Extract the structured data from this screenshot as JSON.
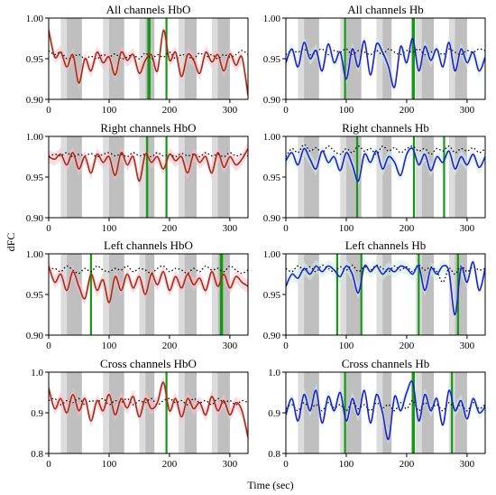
{
  "figure": {
    "ylabel": "dFC",
    "xlabel": "Time (sec)"
  },
  "chart_data": [
    {
      "type": "line",
      "title": "All channels HbO",
      "xlim": [
        0,
        330
      ],
      "ylim": [
        0.9,
        1.0
      ],
      "xticks": [
        "0",
        "100",
        "200",
        "300"
      ],
      "yticks": [
        "0.90",
        "0.95",
        "1.00"
      ],
      "color": "#aa2a10",
      "band_color": "#f7bfd0",
      "x": [
        0,
        10,
        20,
        30,
        40,
        50,
        60,
        70,
        80,
        90,
        100,
        110,
        120,
        130,
        140,
        150,
        160,
        170,
        180,
        190,
        200,
        210,
        220,
        230,
        240,
        250,
        260,
        270,
        280,
        290,
        300,
        310,
        320,
        330
      ],
      "values": [
        0.985,
        0.952,
        0.958,
        0.94,
        0.955,
        0.92,
        0.95,
        0.935,
        0.958,
        0.945,
        0.952,
        0.93,
        0.958,
        0.948,
        0.955,
        0.932,
        0.948,
        0.955,
        0.935,
        0.985,
        0.948,
        0.958,
        0.928,
        0.955,
        0.948,
        0.932,
        0.958,
        0.946,
        0.955,
        0.935,
        0.956,
        0.942,
        0.952,
        0.905
      ],
      "dotted": [
        0.96,
        0.955,
        0.958,
        0.95,
        0.952,
        0.955,
        0.95,
        0.953,
        0.95,
        0.955,
        0.952,
        0.956,
        0.95,
        0.952,
        0.955,
        0.95,
        0.957,
        0.95,
        0.955,
        0.952,
        0.958,
        0.95,
        0.955,
        0.953,
        0.95,
        0.957,
        0.952,
        0.955,
        0.95,
        0.955,
        0.952,
        0.955,
        0.96,
        0.955
      ]
    },
    {
      "type": "line",
      "title": "All channels Hb",
      "xlim": [
        0,
        330
      ],
      "ylim": [
        0.9,
        1.0
      ],
      "xticks": [
        "0",
        "100",
        "200",
        "300"
      ],
      "yticks": [
        "0.90",
        "0.95",
        "1.00"
      ],
      "color": "#1f1fcf",
      "band_color": "#ccefe8",
      "x": [
        0,
        10,
        20,
        30,
        40,
        50,
        60,
        70,
        80,
        90,
        100,
        110,
        120,
        130,
        140,
        150,
        160,
        170,
        180,
        190,
        200,
        210,
        220,
        230,
        240,
        250,
        260,
        270,
        280,
        290,
        300,
        310,
        320,
        330
      ],
      "values": [
        0.945,
        0.962,
        0.94,
        0.97,
        0.95,
        0.96,
        0.935,
        0.968,
        0.945,
        0.958,
        0.925,
        0.962,
        0.94,
        0.972,
        0.93,
        0.968,
        0.958,
        0.94,
        0.915,
        0.965,
        0.945,
        0.975,
        0.935,
        0.965,
        0.948,
        0.962,
        0.94,
        0.97,
        0.935,
        0.962,
        0.945,
        0.958,
        0.935,
        0.952
      ],
      "dotted": [
        0.955,
        0.96,
        0.958,
        0.962,
        0.955,
        0.958,
        0.962,
        0.955,
        0.96,
        0.958,
        0.962,
        0.955,
        0.96,
        0.958,
        0.955,
        0.96,
        0.955,
        0.962,
        0.958,
        0.955,
        0.96,
        0.958,
        0.962,
        0.955,
        0.958,
        0.96,
        0.955,
        0.962,
        0.958,
        0.955,
        0.96,
        0.958,
        0.962,
        0.96
      ]
    },
    {
      "type": "line",
      "title": "Right channels HbO",
      "xlim": [
        0,
        330
      ],
      "ylim": [
        0.9,
        1.0
      ],
      "xticks": [
        "0",
        "100",
        "200",
        "300"
      ],
      "yticks": [
        "0.90",
        "0.95",
        "1.00"
      ],
      "color": "#aa2a10",
      "band_color": "#f7bfd0",
      "x": [
        0,
        10,
        20,
        30,
        40,
        50,
        60,
        70,
        80,
        90,
        100,
        110,
        120,
        130,
        140,
        150,
        160,
        170,
        180,
        190,
        200,
        210,
        220,
        230,
        240,
        250,
        260,
        270,
        280,
        290,
        300,
        310,
        320,
        330
      ],
      "values": [
        0.975,
        0.972,
        0.978,
        0.965,
        0.98,
        0.96,
        0.975,
        0.955,
        0.978,
        0.968,
        0.975,
        0.952,
        0.98,
        0.965,
        0.975,
        0.945,
        0.978,
        0.968,
        0.975,
        0.96,
        0.978,
        0.97,
        0.975,
        0.955,
        0.978,
        0.968,
        0.975,
        0.955,
        0.98,
        0.962,
        0.975,
        0.965,
        0.972,
        0.985
      ],
      "dotted": [
        0.975,
        0.978,
        0.976,
        0.98,
        0.975,
        0.978,
        0.976,
        0.979,
        0.975,
        0.978,
        0.98,
        0.976,
        0.978,
        0.975,
        0.98,
        0.976,
        0.978,
        0.975,
        0.98,
        0.976,
        0.978,
        0.975,
        0.979,
        0.976,
        0.978,
        0.975,
        0.98,
        0.976,
        0.978,
        0.975,
        0.98,
        0.976,
        0.978,
        0.976
      ]
    },
    {
      "type": "line",
      "title": "Right channels Hb",
      "xlim": [
        0,
        330
      ],
      "ylim": [
        0.9,
        1.0
      ],
      "xticks": [
        "0",
        "100",
        "200",
        "300"
      ],
      "yticks": [
        "0.90",
        "0.95",
        "1.00"
      ],
      "color": "#1f1fcf",
      "band_color": "#ccefe8",
      "x": [
        0,
        10,
        20,
        30,
        40,
        50,
        60,
        70,
        80,
        90,
        100,
        110,
        120,
        130,
        140,
        150,
        160,
        170,
        180,
        190,
        200,
        210,
        220,
        230,
        240,
        250,
        260,
        270,
        280,
        290,
        300,
        310,
        320,
        330
      ],
      "values": [
        0.97,
        0.98,
        0.965,
        0.985,
        0.972,
        0.96,
        0.982,
        0.968,
        0.975,
        0.958,
        0.98,
        0.965,
        0.945,
        0.978,
        0.968,
        0.982,
        0.96,
        0.975,
        0.968,
        0.952,
        0.978,
        0.985,
        0.965,
        0.978,
        0.958,
        0.975,
        0.968,
        0.982,
        0.96,
        0.975,
        0.965,
        0.978,
        0.962,
        0.975
      ],
      "dotted": [
        0.975,
        0.985,
        0.98,
        0.99,
        0.982,
        0.986,
        0.98,
        0.988,
        0.982,
        0.978,
        0.985,
        0.98,
        0.988,
        0.982,
        0.985,
        0.978,
        0.988,
        0.982,
        0.986,
        0.98,
        0.985,
        0.988,
        0.982,
        0.985,
        0.978,
        0.985,
        0.982,
        0.988,
        0.98,
        0.985,
        0.982,
        0.986,
        0.98,
        0.985
      ]
    },
    {
      "type": "line",
      "title": "Left channels HbO",
      "xlim": [
        0,
        330
      ],
      "ylim": [
        0.9,
        1.0
      ],
      "xticks": [
        "0",
        "100",
        "200",
        "300"
      ],
      "yticks": [
        "0.90",
        "0.95",
        "1.00"
      ],
      "color": "#aa2a10",
      "band_color": "#f7bfd0",
      "x": [
        0,
        10,
        20,
        30,
        40,
        50,
        60,
        70,
        80,
        90,
        100,
        110,
        120,
        130,
        140,
        150,
        160,
        170,
        180,
        190,
        200,
        210,
        220,
        230,
        240,
        250,
        260,
        270,
        280,
        290,
        300,
        310,
        320,
        330
      ],
      "values": [
        0.985,
        0.965,
        0.975,
        0.955,
        0.978,
        0.96,
        0.945,
        0.975,
        0.955,
        0.968,
        0.94,
        0.972,
        0.955,
        0.975,
        0.958,
        0.972,
        0.95,
        0.975,
        0.962,
        0.978,
        0.955,
        0.972,
        0.958,
        0.975,
        0.962,
        0.97,
        0.955,
        0.978,
        0.96,
        0.975,
        0.958,
        0.972,
        0.965,
        0.96
      ],
      "dotted": [
        0.98,
        0.982,
        0.978,
        0.985,
        0.98,
        0.976,
        0.982,
        0.978,
        0.985,
        0.98,
        0.978,
        0.982,
        0.98,
        0.985,
        0.978,
        0.982,
        0.98,
        0.976,
        0.982,
        0.985,
        0.978,
        0.982,
        0.98,
        0.976,
        0.982,
        0.978,
        0.985,
        0.98,
        0.982,
        0.978,
        0.985,
        0.98,
        0.976,
        0.98
      ]
    },
    {
      "type": "line",
      "title": "Left channels Hb",
      "xlim": [
        0,
        330
      ],
      "ylim": [
        0.9,
        1.0
      ],
      "xticks": [
        "0",
        "100",
        "200",
        "300"
      ],
      "yticks": [
        "0.90",
        "0.95",
        "1.00"
      ],
      "color": "#1f1fcf",
      "band_color": "#ccefe8",
      "x": [
        0,
        10,
        20,
        30,
        40,
        50,
        60,
        70,
        80,
        90,
        100,
        110,
        120,
        130,
        140,
        150,
        160,
        170,
        180,
        190,
        200,
        210,
        220,
        230,
        240,
        250,
        260,
        270,
        280,
        290,
        300,
        310,
        320,
        330
      ],
      "values": [
        0.96,
        0.975,
        0.97,
        0.982,
        0.975,
        0.985,
        0.978,
        0.985,
        0.98,
        0.972,
        0.985,
        0.975,
        0.952,
        0.985,
        0.978,
        0.985,
        0.975,
        0.982,
        0.978,
        0.985,
        0.982,
        0.975,
        0.985,
        0.955,
        0.982,
        0.975,
        0.985,
        0.978,
        0.925,
        0.982,
        0.965,
        0.99,
        0.955,
        0.982
      ],
      "dotted": [
        0.982,
        0.978,
        0.985,
        0.98,
        0.984,
        0.978,
        0.986,
        0.982,
        0.978,
        0.984,
        0.98,
        0.986,
        0.978,
        0.984,
        0.98,
        0.986,
        0.982,
        0.978,
        0.985,
        0.98,
        0.984,
        0.978,
        0.986,
        0.98,
        0.984,
        0.978,
        0.965,
        0.982,
        0.975,
        0.985,
        0.978,
        0.984,
        0.98,
        0.982
      ]
    },
    {
      "type": "line",
      "title": "Cross channels HbO",
      "xlim": [
        0,
        330
      ],
      "ylim": [
        0.8,
        1.0
      ],
      "xticks": [
        "0",
        "100",
        "200",
        "300"
      ],
      "yticks": [
        "0.8",
        "0.9",
        "1.0"
      ],
      "color": "#aa2a10",
      "band_color": "#f7bfd0",
      "x": [
        0,
        10,
        20,
        30,
        40,
        50,
        60,
        70,
        80,
        90,
        100,
        110,
        120,
        130,
        140,
        150,
        160,
        170,
        180,
        190,
        200,
        210,
        220,
        230,
        240,
        250,
        260,
        270,
        280,
        290,
        300,
        310,
        320,
        330
      ],
      "values": [
        0.96,
        0.91,
        0.935,
        0.9,
        0.945,
        0.905,
        0.935,
        0.88,
        0.93,
        0.905,
        0.945,
        0.895,
        0.935,
        0.912,
        0.94,
        0.89,
        0.935,
        0.91,
        0.925,
        0.975,
        0.905,
        0.935,
        0.89,
        0.935,
        0.91,
        0.925,
        0.895,
        0.94,
        0.905,
        0.93,
        0.895,
        0.925,
        0.905,
        0.84
      ],
      "dotted": [
        0.93,
        0.935,
        0.92,
        0.93,
        0.925,
        0.935,
        0.92,
        0.93,
        0.925,
        0.935,
        0.92,
        0.93,
        0.925,
        0.935,
        0.92,
        0.93,
        0.925,
        0.935,
        0.92,
        0.93,
        0.935,
        0.925,
        0.93,
        0.92,
        0.935,
        0.925,
        0.93,
        0.92,
        0.935,
        0.925,
        0.93,
        0.92,
        0.93,
        0.925
      ]
    },
    {
      "type": "line",
      "title": "Cross channels Hb",
      "xlim": [
        0,
        330
      ],
      "ylim": [
        0.8,
        1.0
      ],
      "xticks": [
        "0",
        "100",
        "200",
        "300"
      ],
      "yticks": [
        "0.8",
        "0.9",
        "1.0"
      ],
      "color": "#1f1fcf",
      "band_color": "#ccefe8",
      "x": [
        0,
        10,
        20,
        30,
        40,
        50,
        60,
        70,
        80,
        90,
        100,
        110,
        120,
        130,
        140,
        150,
        160,
        170,
        180,
        190,
        200,
        210,
        220,
        230,
        240,
        250,
        260,
        270,
        280,
        290,
        300,
        310,
        320,
        330
      ],
      "values": [
        0.895,
        0.935,
        0.88,
        0.945,
        0.905,
        0.955,
        0.875,
        0.94,
        0.905,
        0.95,
        0.88,
        0.935,
        0.895,
        0.955,
        0.875,
        0.945,
        0.9,
        0.835,
        0.94,
        0.905,
        0.95,
        0.975,
        0.88,
        0.945,
        0.905,
        0.935,
        0.87,
        0.955,
        0.905,
        0.93,
        0.885,
        0.935,
        0.9,
        0.915
      ],
      "dotted": [
        0.91,
        0.92,
        0.905,
        0.925,
        0.91,
        0.92,
        0.905,
        0.925,
        0.912,
        0.92,
        0.905,
        0.925,
        0.91,
        0.92,
        0.905,
        0.925,
        0.912,
        0.92,
        0.905,
        0.925,
        0.91,
        0.93,
        0.905,
        0.925,
        0.912,
        0.92,
        0.905,
        0.925,
        0.91,
        0.92,
        0.905,
        0.925,
        0.91,
        0.92
      ]
    }
  ]
}
